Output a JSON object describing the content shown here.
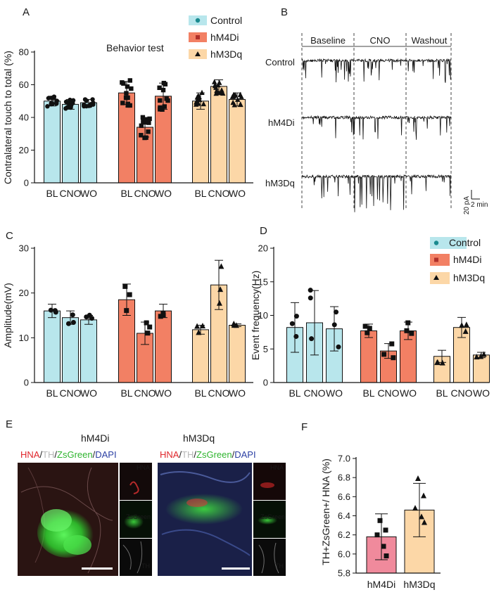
{
  "panels": {
    "A": "A",
    "B": "B",
    "C": "C",
    "D": "D",
    "E": "E",
    "F": "F"
  },
  "legend": {
    "control": "Control",
    "hm4di": "hM4Di",
    "hm3dq": "hM3Dq"
  },
  "colors": {
    "control": "#b8e6ec",
    "hm4di": "#f28064",
    "hm3dq": "#fcd7a7",
    "f_hm4di": "#f08a9c",
    "control_marker": "#1a8a8f",
    "hm4di_marker": "#c0392b"
  },
  "panel_b": {
    "phases": [
      "Baseline",
      "CNO",
      "Washout"
    ],
    "rows": [
      "Control",
      "hM4Di",
      "hM3Dq"
    ],
    "scale_y": "20 pA",
    "scale_x": "2 min"
  },
  "panel_e": {
    "images": [
      {
        "title": "hM4Di",
        "stain": {
          "hna": "HNA",
          "th": "TH",
          "zs": "ZsGreen",
          "dapi": "DAPI"
        },
        "side_labels": [
          "HNA",
          "ZsGreen",
          "TH"
        ]
      },
      {
        "title": "hM3Dq",
        "stain": {
          "hna": "HNA",
          "th": "TH",
          "zs": "ZsGreen",
          "dapi": "DAPI"
        },
        "side_labels": [
          "HNA",
          "ZsGreen",
          "TH"
        ]
      }
    ]
  },
  "chart_data": [
    {
      "panel": "A",
      "type": "bar",
      "title": "Behavior test",
      "ylabel": "Contralateral touch to total (%)",
      "ylim": [
        0,
        80
      ],
      "yticks": [
        0,
        20,
        40,
        60,
        80
      ],
      "groups": [
        {
          "name": "Control",
          "categories": [
            "BL",
            "CNO",
            "WO"
          ],
          "values": [
            50,
            48,
            49
          ],
          "errors": [
            3,
            3,
            2
          ]
        },
        {
          "name": "hM4Di",
          "categories": [
            "BL",
            "CNO",
            "WO"
          ],
          "values": [
            55,
            34,
            53
          ],
          "errors": [
            7,
            6,
            8
          ]
        },
        {
          "name": "hM3Dq",
          "categories": [
            "BL",
            "CNO",
            "WO"
          ],
          "values": [
            50,
            59,
            51
          ],
          "errors": [
            5,
            4,
            4
          ]
        }
      ]
    },
    {
      "panel": "C",
      "type": "bar",
      "ylabel": "Amplitude(mV)",
      "ylim": [
        0,
        30
      ],
      "yticks": [
        0,
        10,
        20,
        30
      ],
      "groups": [
        {
          "name": "Control",
          "categories": [
            "BL",
            "CNO",
            "WO"
          ],
          "values": [
            16,
            14.5,
            14
          ],
          "errors": [
            1.5,
            1.5,
            1
          ]
        },
        {
          "name": "hM4Di",
          "categories": [
            "BL",
            "CNO",
            "WO"
          ],
          "values": [
            18.5,
            11,
            16
          ],
          "errors": [
            3.5,
            2.5,
            1.5
          ]
        },
        {
          "name": "hM3Dq",
          "categories": [
            "BL",
            "CNO",
            "WO"
          ],
          "values": [
            11.8,
            21.8,
            12.8
          ],
          "errors": [
            1,
            5.5,
            0.3
          ]
        }
      ]
    },
    {
      "panel": "D",
      "type": "bar",
      "ylabel": "Event frequency(Hz)",
      "ylim": [
        0,
        20
      ],
      "yticks": [
        0,
        5,
        10,
        15,
        20
      ],
      "groups": [
        {
          "name": "Control",
          "categories": [
            "BL",
            "CNO",
            "WO"
          ],
          "values": [
            8.2,
            8.9,
            8.0
          ],
          "errors": [
            3.7,
            4.8,
            3.3
          ]
        },
        {
          "name": "hM4Di",
          "categories": [
            "BL",
            "CNO",
            "WO"
          ],
          "values": [
            7.7,
            4.7,
            7.7
          ],
          "errors": [
            1.0,
            1.1,
            1.3
          ]
        },
        {
          "name": "hM3Dq",
          "categories": [
            "BL",
            "CNO",
            "WO"
          ],
          "values": [
            3.9,
            8.2,
            4.1
          ],
          "errors": [
            0.9,
            1.5,
            0.4
          ]
        }
      ]
    },
    {
      "panel": "F",
      "type": "bar",
      "ylabel": "TH+ZsGreen+/ HNA (%)",
      "ylim": [
        5.8,
        7.0
      ],
      "yticks": [
        "5.8",
        "6.0",
        "6.2",
        "6.4",
        "6.6",
        "6.8",
        "7.0"
      ],
      "categories": [
        "hM4Di",
        "hM3Dq"
      ],
      "values": [
        6.18,
        6.46
      ],
      "errors": [
        0.24,
        0.28
      ],
      "points": [
        [
          6.35,
          6.25,
          6.2,
          6.08,
          5.98
        ],
        [
          6.79,
          6.61,
          6.48,
          6.39,
          6.33
        ]
      ]
    }
  ]
}
